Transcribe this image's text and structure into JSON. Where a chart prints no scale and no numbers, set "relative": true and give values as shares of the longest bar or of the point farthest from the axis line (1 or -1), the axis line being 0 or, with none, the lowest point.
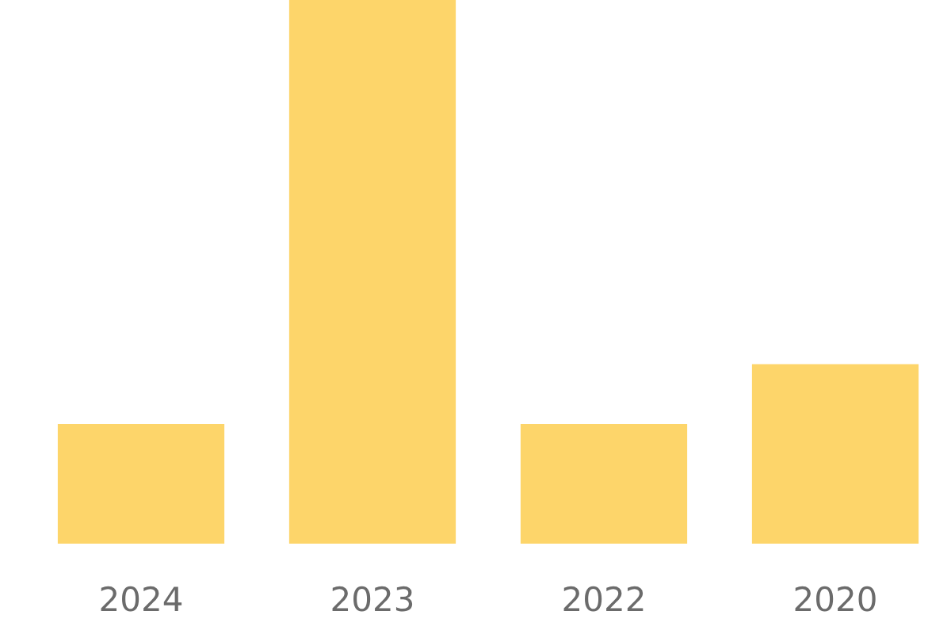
{
  "chart_data": {
    "type": "bar",
    "relative": true,
    "categories": [
      "2024",
      "2023",
      "2022",
      "2020"
    ],
    "values": [
      0.22,
      1,
      0.22,
      0.33
    ],
    "color": "#fdd56a"
  }
}
